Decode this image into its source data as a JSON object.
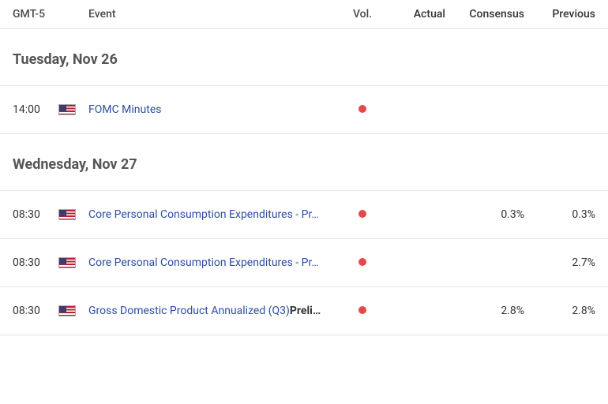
{
  "header": {
    "timezone": "GMT-5",
    "event": "Event",
    "vol": "Vol.",
    "actual": "Actual",
    "consensus": "Consensus",
    "previous": "Previous"
  },
  "days": [
    {
      "label": "Tuesday, Nov 26",
      "events": [
        {
          "time": "14:00",
          "flag": "us",
          "name": "FOMC Minutes",
          "suffix": "",
          "vol_color": "#e24a4a",
          "actual": "",
          "consensus": "",
          "previous": ""
        }
      ]
    },
    {
      "label": "Wednesday, Nov 27",
      "events": [
        {
          "time": "08:30",
          "flag": "us",
          "name": "Core Personal Consumption Expenditures - Pr…",
          "suffix": "",
          "vol_color": "#e24a4a",
          "actual": "",
          "consensus": "0.3%",
          "previous": "0.3%"
        },
        {
          "time": "08:30",
          "flag": "us",
          "name": "Core Personal Consumption Expenditures - Pr…",
          "suffix": "",
          "vol_color": "#e24a4a",
          "actual": "",
          "consensus": "",
          "previous": "2.7%"
        },
        {
          "time": "08:30",
          "flag": "us",
          "name": "Gross Domestic Product Annualized (Q3)",
          "suffix": "Preli…",
          "vol_color": "#e24a4a",
          "actual": "",
          "consensus": "2.8%",
          "previous": "2.8%"
        }
      ]
    }
  ]
}
